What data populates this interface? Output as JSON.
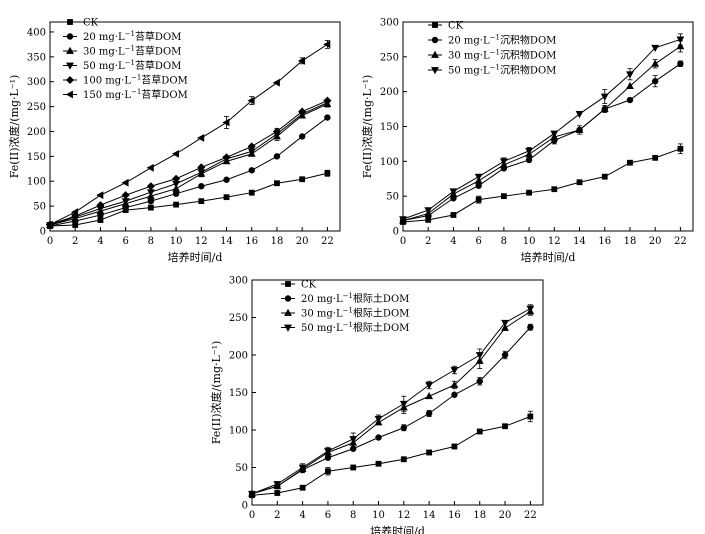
{
  "chart_data": [
    {
      "type": "line",
      "title": "",
      "xlabel": "培养时间/d",
      "ylabel": "Fe(II)浓度/(mg·L⁻¹)",
      "xlim": [
        0,
        23
      ],
      "ylim": [
        0,
        420
      ],
      "xticks": [
        0,
        2,
        4,
        6,
        8,
        10,
        12,
        14,
        16,
        18,
        20,
        22
      ],
      "yticks": [
        0,
        50,
        100,
        150,
        200,
        250,
        300,
        350,
        400
      ],
      "x": [
        0,
        2,
        4,
        6,
        8,
        10,
        12,
        14,
        16,
        18,
        20,
        22
      ],
      "legend_position": "top-left",
      "series": [
        {
          "name": "CK",
          "pre": "CK",
          "sup": "",
          "post": "",
          "marker": "square",
          "values": [
            10,
            12,
            22,
            42,
            47,
            53,
            60,
            68,
            77,
            96,
            104,
            116
          ],
          "errors": [
            0,
            0,
            0,
            4,
            0,
            0,
            0,
            0,
            0,
            0,
            0,
            6
          ]
        },
        {
          "name": "20 mg·L⁻¹苔草DOM",
          "pre": "20 mg·L",
          "sup": "−1",
          "post": "苔草DOM",
          "marker": "circle",
          "values": [
            10,
            20,
            32,
            47,
            60,
            75,
            90,
            103,
            122,
            150,
            190,
            228
          ],
          "errors": [
            0,
            0,
            0,
            0,
            0,
            0,
            0,
            0,
            0,
            0,
            0,
            0
          ]
        },
        {
          "name": "30 mg·L⁻¹苔草DOM",
          "pre": "30 mg·L",
          "sup": "−1",
          "post": "苔草DOM",
          "marker": "triangle-up",
          "values": [
            12,
            25,
            40,
            55,
            70,
            85,
            115,
            140,
            155,
            190,
            232,
            255
          ],
          "errors": [
            0,
            0,
            0,
            0,
            0,
            0,
            6,
            0,
            0,
            8,
            0,
            6
          ]
        },
        {
          "name": "50 mg·L⁻¹苔草DOM",
          "pre": "50 mg·L",
          "sup": "−1",
          "post": "苔草DOM",
          "marker": "triangle-down",
          "values": [
            12,
            28,
            45,
            60,
            78,
            95,
            118,
            145,
            160,
            195,
            235,
            258
          ],
          "errors": [
            0,
            0,
            0,
            0,
            0,
            0,
            0,
            0,
            0,
            0,
            0,
            0
          ]
        },
        {
          "name": "100 mg·L⁻¹苔草DOM",
          "pre": "100 mg·L",
          "sup": "−1",
          "post": "苔草DOM",
          "marker": "diamond",
          "values": [
            13,
            30,
            52,
            72,
            90,
            105,
            128,
            148,
            170,
            200,
            240,
            262
          ],
          "errors": [
            0,
            0,
            0,
            0,
            0,
            0,
            0,
            0,
            0,
            6,
            0,
            0
          ]
        },
        {
          "name": "150 mg·L⁻¹苔草DOM",
          "pre": "150 mg·L",
          "sup": "−1",
          "post": "苔草DOM",
          "marker": "triangle-left",
          "values": [
            13,
            38,
            72,
            97,
            127,
            155,
            187,
            218,
            262,
            298,
            342,
            375
          ],
          "errors": [
            0,
            0,
            0,
            0,
            0,
            0,
            0,
            12,
            8,
            0,
            6,
            8
          ]
        }
      ]
    },
    {
      "type": "line",
      "title": "",
      "xlabel": "培养时间/d",
      "ylabel": "Fe(II)浓度/(mg·L⁻¹)",
      "xlim": [
        0,
        23
      ],
      "ylim": [
        0,
        300
      ],
      "xticks": [
        0,
        2,
        4,
        6,
        8,
        10,
        12,
        14,
        16,
        18,
        20,
        22
      ],
      "yticks": [
        0,
        50,
        100,
        150,
        200,
        250,
        300
      ],
      "x": [
        0,
        2,
        4,
        6,
        8,
        10,
        12,
        14,
        16,
        18,
        20,
        22
      ],
      "legend_position": "top-left",
      "series": [
        {
          "name": "CK",
          "pre": "CK",
          "sup": "",
          "post": "",
          "marker": "square",
          "values": [
            13,
            16,
            23,
            45,
            50,
            55,
            60,
            70,
            78,
            98,
            105,
            118
          ],
          "errors": [
            0,
            0,
            0,
            5,
            0,
            0,
            0,
            0,
            0,
            0,
            0,
            7
          ]
        },
        {
          "name": "20 mg·L⁻¹沉积物DOM",
          "pre": "20 mg·L",
          "sup": "−1",
          "post": "沉积物DOM",
          "marker": "circle",
          "values": [
            15,
            22,
            47,
            65,
            90,
            102,
            130,
            145,
            175,
            188,
            215,
            240
          ],
          "errors": [
            0,
            0,
            0,
            0,
            0,
            0,
            5,
            0,
            5,
            0,
            8,
            4
          ]
        },
        {
          "name": "30 mg·L⁻¹沉积物DOM",
          "pre": "30 mg·L",
          "sup": "−1",
          "post": "沉积物DOM",
          "marker": "triangle-up",
          "values": [
            15,
            25,
            53,
            72,
            95,
            110,
            135,
            145,
            175,
            208,
            240,
            265
          ],
          "errors": [
            0,
            0,
            0,
            0,
            0,
            0,
            0,
            6,
            0,
            0,
            6,
            8
          ]
        },
        {
          "name": "50 mg·L⁻¹沉积物DOM",
          "pre": "50 mg·L",
          "sup": "−1",
          "post": "沉积物DOM",
          "marker": "triangle-down",
          "values": [
            17,
            30,
            57,
            78,
            100,
            115,
            140,
            168,
            193,
            225,
            263,
            275
          ],
          "errors": [
            0,
            0,
            0,
            0,
            5,
            5,
            0,
            0,
            10,
            8,
            0,
            8
          ]
        }
      ]
    },
    {
      "type": "line",
      "title": "",
      "xlabel": "培养时间/d",
      "ylabel": "Fe(II)浓度/(mg·L⁻¹)",
      "xlim": [
        0,
        23
      ],
      "ylim": [
        0,
        300
      ],
      "xticks": [
        0,
        2,
        4,
        6,
        8,
        10,
        12,
        14,
        16,
        18,
        20,
        22
      ],
      "yticks": [
        0,
        50,
        100,
        150,
        200,
        250,
        300
      ],
      "x": [
        0,
        2,
        4,
        6,
        8,
        10,
        12,
        14,
        16,
        18,
        20,
        22
      ],
      "legend_position": "top-left",
      "series": [
        {
          "name": "CK",
          "pre": "CK",
          "sup": "",
          "post": "",
          "marker": "square",
          "values": [
            13,
            16,
            23,
            45,
            50,
            55,
            61,
            70,
            78,
            98,
            105,
            118
          ],
          "errors": [
            0,
            0,
            0,
            5,
            0,
            0,
            0,
            0,
            3,
            0,
            0,
            7
          ]
        },
        {
          "name": "20 mg·L⁻¹根际土DOM",
          "pre": "20 mg·L",
          "sup": "−1",
          "post": "根际土DOM",
          "marker": "circle",
          "values": [
            15,
            25,
            47,
            63,
            75,
            90,
            103,
            122,
            147,
            165,
            200,
            237
          ],
          "errors": [
            0,
            0,
            0,
            0,
            0,
            0,
            4,
            4,
            0,
            5,
            5,
            4
          ]
        },
        {
          "name": "30 mg·L⁻¹根际土DOM",
          "pre": "30 mg·L",
          "sup": "−1",
          "post": "根际土DOM",
          "marker": "triangle-up",
          "values": [
            15,
            25,
            48,
            70,
            83,
            110,
            130,
            145,
            160,
            192,
            236,
            258
          ],
          "errors": [
            0,
            0,
            5,
            5,
            8,
            0,
            8,
            0,
            5,
            10,
            0,
            5
          ]
        },
        {
          "name": "50 mg·L⁻¹根际土DOM",
          "pre": "50 mg·L",
          "sup": "−1",
          "post": "根际土DOM",
          "marker": "triangle-down",
          "values": [
            15,
            28,
            50,
            72,
            88,
            115,
            135,
            160,
            180,
            200,
            243,
            262
          ],
          "errors": [
            0,
            0,
            5,
            5,
            8,
            5,
            10,
            5,
            5,
            8,
            0,
            5
          ]
        }
      ]
    }
  ]
}
